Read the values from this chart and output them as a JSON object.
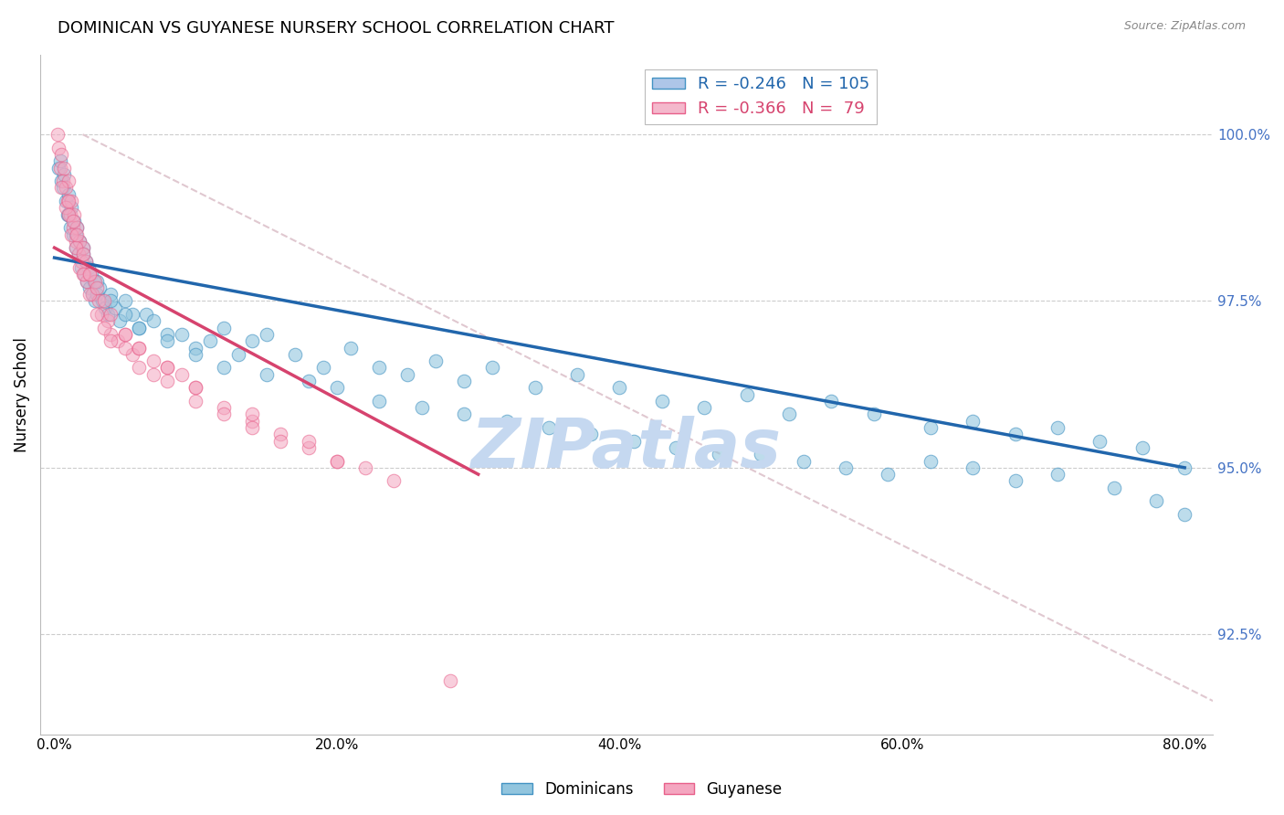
{
  "title": "DOMINICAN VS GUYANESE NURSERY SCHOOL CORRELATION CHART",
  "source": "Source: ZipAtlas.com",
  "ylabel_left": "Nursery School",
  "xlabel_vals": [
    0.0,
    20.0,
    40.0,
    60.0,
    80.0
  ],
  "ylabel_right_vals": [
    100.0,
    97.5,
    95.0,
    92.5
  ],
  "ymin": 91.0,
  "ymax": 101.2,
  "xmin": -1.0,
  "xmax": 82.0,
  "blue_R": -0.246,
  "blue_N": 105,
  "pink_R": -0.366,
  "pink_N": 79,
  "blue_color": "#92c5de",
  "pink_color": "#f4a6c0",
  "blue_edge_color": "#4393c3",
  "pink_edge_color": "#e8608a",
  "blue_line_color": "#2166ac",
  "pink_line_color": "#d6436e",
  "diagonal_color": "#e0c8d0",
  "watermark": "ZIPatlas",
  "watermark_color": "#c5d8f0",
  "right_axis_color": "#4472c4",
  "blue_trend_x0": 0.0,
  "blue_trend_y0": 98.15,
  "blue_trend_x1": 80.0,
  "blue_trend_y1": 95.0,
  "pink_trend_x0": 0.0,
  "pink_trend_y0": 98.3,
  "pink_trend_x1": 30.0,
  "pink_trend_y1": 94.9,
  "diag_x0": 2.0,
  "diag_y0": 100.0,
  "diag_x1": 82.0,
  "diag_y1": 91.5,
  "blue_scatter_x": [
    0.3,
    0.4,
    0.5,
    0.6,
    0.7,
    0.8,
    0.9,
    1.0,
    1.1,
    1.2,
    1.3,
    1.4,
    1.5,
    1.6,
    1.7,
    1.8,
    1.9,
    2.0,
    2.1,
    2.2,
    2.3,
    2.4,
    2.5,
    2.6,
    2.7,
    2.8,
    2.9,
    3.0,
    3.2,
    3.4,
    3.6,
    3.8,
    4.0,
    4.3,
    4.6,
    5.0,
    5.5,
    6.0,
    6.5,
    7.0,
    8.0,
    9.0,
    10.0,
    11.0,
    12.0,
    13.0,
    14.0,
    15.0,
    17.0,
    19.0,
    21.0,
    23.0,
    25.0,
    27.0,
    29.0,
    31.0,
    34.0,
    37.0,
    40.0,
    43.0,
    46.0,
    49.0,
    52.0,
    55.0,
    58.0,
    62.0,
    65.0,
    68.0,
    71.0,
    74.0,
    77.0,
    80.0,
    1.0,
    1.5,
    2.0,
    3.0,
    4.0,
    5.0,
    6.0,
    8.0,
    10.0,
    12.0,
    15.0,
    18.0,
    20.0,
    23.0,
    26.0,
    29.0,
    32.0,
    35.0,
    38.0,
    41.0,
    44.0,
    47.0,
    50.0,
    53.0,
    56.0,
    59.0,
    62.0,
    65.0,
    68.0,
    71.0,
    75.0,
    78.0,
    80.0
  ],
  "blue_scatter_y": [
    99.5,
    99.6,
    99.3,
    99.2,
    99.4,
    99.0,
    98.8,
    99.1,
    98.6,
    98.9,
    98.5,
    98.7,
    98.3,
    98.6,
    98.2,
    98.4,
    98.0,
    98.3,
    97.9,
    98.1,
    97.8,
    98.0,
    97.7,
    97.9,
    97.6,
    97.8,
    97.5,
    97.6,
    97.7,
    97.5,
    97.4,
    97.3,
    97.6,
    97.4,
    97.2,
    97.5,
    97.3,
    97.1,
    97.3,
    97.2,
    97.0,
    97.0,
    96.8,
    96.9,
    97.1,
    96.7,
    96.9,
    97.0,
    96.7,
    96.5,
    96.8,
    96.5,
    96.4,
    96.6,
    96.3,
    96.5,
    96.2,
    96.4,
    96.2,
    96.0,
    95.9,
    96.1,
    95.8,
    96.0,
    95.8,
    95.6,
    95.7,
    95.5,
    95.6,
    95.4,
    95.3,
    95.0,
    98.8,
    98.5,
    98.2,
    97.8,
    97.5,
    97.3,
    97.1,
    96.9,
    96.7,
    96.5,
    96.4,
    96.3,
    96.2,
    96.0,
    95.9,
    95.8,
    95.7,
    95.6,
    95.5,
    95.4,
    95.3,
    95.2,
    95.2,
    95.1,
    95.0,
    94.9,
    95.1,
    95.0,
    94.8,
    94.9,
    94.7,
    94.5,
    94.3
  ],
  "pink_scatter_x": [
    0.2,
    0.3,
    0.4,
    0.5,
    0.6,
    0.7,
    0.8,
    0.9,
    1.0,
    1.1,
    1.2,
    1.3,
    1.4,
    1.5,
    1.6,
    1.7,
    1.8,
    1.9,
    2.0,
    2.1,
    2.2,
    2.3,
    2.5,
    2.7,
    2.9,
    3.1,
    3.3,
    3.5,
    3.8,
    4.0,
    4.5,
    5.0,
    5.5,
    6.0,
    7.0,
    8.0,
    9.0,
    10.0,
    12.0,
    14.0,
    16.0,
    18.0,
    20.0,
    0.5,
    0.8,
    1.0,
    1.2,
    1.5,
    1.8,
    2.0,
    2.5,
    3.0,
    3.5,
    4.0,
    5.0,
    6.0,
    7.0,
    8.0,
    10.0,
    12.0,
    14.0,
    16.0,
    20.0,
    24.0,
    28.0,
    1.0,
    1.3,
    1.6,
    2.0,
    2.5,
    3.0,
    4.0,
    5.0,
    6.0,
    8.0,
    10.0,
    14.0,
    18.0,
    22.0
  ],
  "pink_scatter_y": [
    100.0,
    99.8,
    99.5,
    99.7,
    99.3,
    99.5,
    99.2,
    99.0,
    99.3,
    98.8,
    99.0,
    98.6,
    98.8,
    98.4,
    98.6,
    98.2,
    98.4,
    98.1,
    98.3,
    97.9,
    98.1,
    97.8,
    97.9,
    97.6,
    97.8,
    97.5,
    97.3,
    97.5,
    97.2,
    97.0,
    96.9,
    97.0,
    96.7,
    96.8,
    96.6,
    96.5,
    96.4,
    96.2,
    95.9,
    95.7,
    95.5,
    95.3,
    95.1,
    99.2,
    98.9,
    98.8,
    98.5,
    98.3,
    98.0,
    97.9,
    97.6,
    97.3,
    97.1,
    96.9,
    96.8,
    96.5,
    96.4,
    96.3,
    96.0,
    95.8,
    95.6,
    95.4,
    95.1,
    94.8,
    91.8,
    99.0,
    98.7,
    98.5,
    98.2,
    97.9,
    97.7,
    97.3,
    97.0,
    96.8,
    96.5,
    96.2,
    95.8,
    95.4,
    95.0
  ]
}
